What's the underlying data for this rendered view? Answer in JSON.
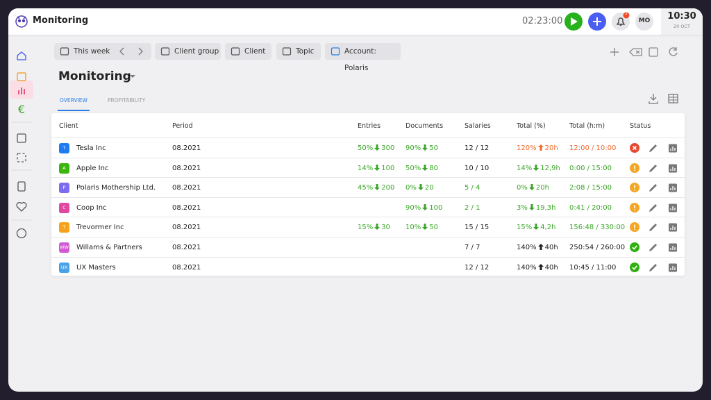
{
  "header": {
    "title": "Monitoring",
    "timer": "02:23:00",
    "notifications": "2",
    "avatar": "MO",
    "time": "10:30",
    "date": "20 OCT"
  },
  "filters": [
    "This week",
    "Client group",
    "Client",
    "Topic",
    "Account: Polaris"
  ],
  "page_title": "Monitoring",
  "tabs": [
    "OVERVIEW",
    "PROFITABILITY"
  ],
  "table": {
    "columns": [
      "Client",
      "Period",
      "Entries",
      "Documents",
      "Salaries",
      "Total (%)",
      "Total (h:m)",
      "Status"
    ],
    "rows": [
      {
        "initials": "T",
        "avatar_color": "#1e7cf2",
        "client": "Tesla Inc",
        "period": "08.2021",
        "entries": {
          "pct": "50%",
          "value": "300",
          "color": "#3aa627",
          "arrow": "down"
        },
        "documents": {
          "pct": "90%",
          "value": "50",
          "color": "#3aa627",
          "arrow": "down"
        },
        "salaries": {
          "text": "12 / 12",
          "color": "#222"
        },
        "total_pct": {
          "pct": "120%",
          "value": "20h",
          "color": "#f06a2c",
          "arrow": "up"
        },
        "total_hm": {
          "text": "12:00 / 10:00",
          "color": "#f06a2c"
        },
        "status": "error"
      },
      {
        "initials": "A",
        "avatar_color": "#3cb50f",
        "client": "Apple Inc",
        "period": "08.2021",
        "entries": {
          "pct": "14%",
          "value": "100",
          "color": "#3aa627",
          "arrow": "down"
        },
        "documents": {
          "pct": "50%",
          "value": "80",
          "color": "#3aa627",
          "arrow": "down"
        },
        "salaries": {
          "text": "10 / 10",
          "color": "#222"
        },
        "total_pct": {
          "pct": "14%",
          "value": "12,9h",
          "color": "#3aa627",
          "arrow": "down"
        },
        "total_hm": {
          "text": "0:00 / 15:00",
          "color": "#3aa627"
        },
        "status": "warning"
      },
      {
        "initials": "P",
        "avatar_color": "#7b6cf0",
        "client": "Polaris Mothership Ltd.",
        "period": "08.2021",
        "entries": {
          "pct": "45%",
          "value": "200",
          "color": "#3aa627",
          "arrow": "down"
        },
        "documents": {
          "pct": "0%",
          "value": "20",
          "color": "#3aa627",
          "arrow": "down"
        },
        "salaries": {
          "text": "5 / 4",
          "color": "#3aa627"
        },
        "total_pct": {
          "pct": "0%",
          "value": "20h",
          "color": "#3aa627",
          "arrow": "down"
        },
        "total_hm": {
          "text": "2:08 / 15:00",
          "color": "#3aa627"
        },
        "status": "warning"
      },
      {
        "initials": "C",
        "avatar_color": "#e0479e",
        "client": "Coop Inc",
        "period": "08.2021",
        "documents": {
          "pct": "90%",
          "value": "100",
          "color": "#3aa627",
          "arrow": "down"
        },
        "salaries": {
          "text": "2 / 1",
          "color": "#3aa627"
        },
        "total_pct": {
          "pct": "3%",
          "value": "19,3h",
          "color": "#3aa627",
          "arrow": "down"
        },
        "total_hm": {
          "text": "0:41 / 20:00",
          "color": "#3aa627"
        },
        "status": "warning"
      },
      {
        "initials": "T",
        "avatar_color": "#f7a21b",
        "client": "Trevormer Inc",
        "period": "08.2021",
        "entries": {
          "pct": "15%",
          "value": "30",
          "color": "#3aa627",
          "arrow": "down"
        },
        "documents": {
          "pct": "10%",
          "value": "50",
          "color": "#3aa627",
          "arrow": "down"
        },
        "salaries": {
          "text": "15 / 15",
          "color": "#222"
        },
        "total_pct": {
          "pct": "15%",
          "value": "4,2h",
          "color": "#3aa627",
          "arrow": "down"
        },
        "total_hm": {
          "text": "156:48 / 330:00",
          "color": "#3aa627"
        },
        "status": "warning"
      },
      {
        "initials": "WW",
        "avatar_color": "#d05bd6",
        "client": "Willams & Partners",
        "period": "08.2021",
        "salaries": {
          "text": "7 / 7",
          "color": "#222"
        },
        "total_pct": {
          "pct": "140%",
          "value": "40h",
          "color": "#222",
          "arrow": "up"
        },
        "total_hm": {
          "text": "250:54 / 260:00",
          "color": "#222"
        },
        "status": "ok"
      },
      {
        "initials": "UX",
        "avatar_color": "#4aa3e8",
        "client": "UX Masters",
        "period": "08.2021",
        "salaries": {
          "text": "12 / 12",
          "color": "#222"
        },
        "total_pct": {
          "pct": "140%",
          "value": "40h",
          "color": "#222",
          "arrow": "up"
        },
        "total_hm": {
          "text": "10:45 / 11:00",
          "color": "#222"
        },
        "status": "ok"
      }
    ]
  }
}
